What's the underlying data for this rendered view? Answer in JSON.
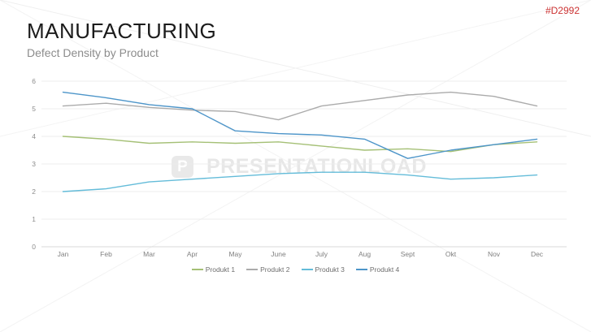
{
  "slide": {
    "title": "MANUFACTURING",
    "subtitle": "Defect Density by Product",
    "product_code": "#D2992",
    "product_code_color": "#cc3333",
    "background_color": "#ffffff"
  },
  "watermark": {
    "logo_letter": "P",
    "logo_icon": "presentationload-p-logo",
    "text": "PRESENTATIONLOAD",
    "color": "#e7e7e7"
  },
  "chart_data": {
    "type": "line",
    "title": "",
    "xlabel": "",
    "ylabel": "",
    "categories": [
      "Jan",
      "Feb",
      "Mar",
      "Apr",
      "May",
      "June",
      "July",
      "Aug",
      "Sept",
      "Okt",
      "Nov",
      "Dec"
    ],
    "series": [
      {
        "name": "Produkt 1",
        "color": "#a5c076",
        "values": [
          4.0,
          3.9,
          3.75,
          3.8,
          3.75,
          3.8,
          3.65,
          3.5,
          3.55,
          3.45,
          3.7,
          3.8
        ]
      },
      {
        "name": "Produkt 2",
        "color": "#ababab",
        "values": [
          5.1,
          5.2,
          5.05,
          4.95,
          4.9,
          4.6,
          5.1,
          5.3,
          5.5,
          5.6,
          5.45,
          5.1
        ]
      },
      {
        "name": "Produkt 3",
        "color": "#64bcd9",
        "values": [
          2.0,
          2.1,
          2.35,
          2.45,
          2.55,
          2.65,
          2.7,
          2.7,
          2.6,
          2.45,
          2.5,
          2.6
        ]
      },
      {
        "name": "Produkt 4",
        "color": "#4d95c9",
        "values": [
          5.6,
          5.4,
          5.15,
          5.0,
          4.2,
          4.1,
          4.05,
          3.9,
          3.2,
          3.5,
          3.7,
          3.9
        ]
      }
    ],
    "ylim": [
      0,
      6
    ],
    "yticks": [
      0,
      1,
      2,
      3,
      4,
      5,
      6
    ],
    "grid": true,
    "gridline_color": "#ececec",
    "axis_line_color": "#d9d9d9",
    "legend_position": "bottom"
  }
}
